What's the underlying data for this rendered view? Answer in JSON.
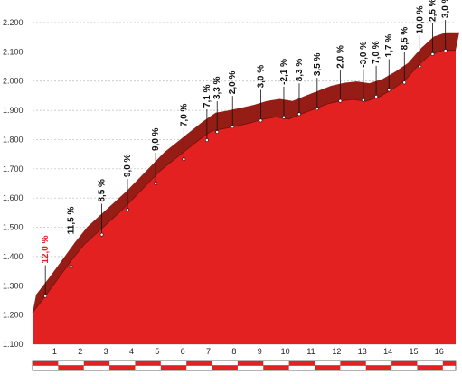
{
  "chart_data": {
    "type": "area",
    "title": "",
    "xlabel": "",
    "ylabel": "",
    "x_unit": "km",
    "xlim": [
      0,
      16.5
    ],
    "ylim": [
      1100,
      2200
    ],
    "y_ticks": [
      1100,
      1200,
      1300,
      1400,
      1500,
      1600,
      1700,
      1800,
      1900,
      2000,
      2100,
      2200
    ],
    "y_tick_labels": [
      "1.100",
      "1.200",
      "1.300",
      "1.400",
      "1.500",
      "1.600",
      "1.700",
      "1.800",
      "1.900",
      "2.000",
      "2.100",
      "2.200"
    ],
    "x_ticks": [
      1,
      2,
      3,
      4,
      5,
      6,
      7,
      8,
      9,
      10,
      11,
      12,
      13,
      14,
      15,
      16
    ],
    "x_tick_labels": [
      "1",
      "2",
      "3",
      "4",
      "5",
      "6",
      "7",
      "8",
      "9",
      "10",
      "11",
      "12",
      "13",
      "14",
      "15",
      "16"
    ],
    "grid": "horizontal",
    "colors": {
      "fill": "#e32120",
      "band": "#961d16",
      "grid": "#bbbbbb",
      "first_label": "#e32120",
      "label": "#111111",
      "strip_red": "#e32120"
    },
    "profile": {
      "x": [
        0,
        0.5,
        1,
        1.5,
        2,
        2.5,
        3,
        3.5,
        4,
        4.5,
        5,
        5.5,
        6,
        6.5,
        7,
        7.5,
        8,
        8.5,
        9,
        9.5,
        10,
        10.5,
        11,
        11.5,
        12,
        12.5,
        13,
        13.5,
        14,
        14.5,
        15,
        15.5,
        16,
        16.5
      ],
      "y": [
        1208,
        1265,
        1325,
        1385,
        1440,
        1480,
        1520,
        1560,
        1605,
        1650,
        1695,
        1730,
        1765,
        1800,
        1830,
        1838,
        1847,
        1857,
        1870,
        1877,
        1870,
        1888,
        1905,
        1922,
        1932,
        1937,
        1931,
        1945,
        1970,
        2000,
        2050,
        2090,
        2105,
        2105
      ]
    },
    "gradients": [
      {
        "km": 0.5,
        "elev": 1265,
        "label": "12,0 %"
      },
      {
        "km": 1.5,
        "elev": 1365,
        "label": "11,5 %"
      },
      {
        "km": 2.7,
        "elev": 1475,
        "label": "8,5 %"
      },
      {
        "km": 3.7,
        "elev": 1560,
        "label": "9,0 %"
      },
      {
        "km": 4.8,
        "elev": 1650,
        "label": "9,0 %"
      },
      {
        "km": 5.9,
        "elev": 1733,
        "label": "7,0 %"
      },
      {
        "km": 6.8,
        "elev": 1798,
        "label": "7,1 %"
      },
      {
        "km": 7.2,
        "elev": 1826,
        "label": "3,3 %"
      },
      {
        "km": 7.8,
        "elev": 1844,
        "label": "2,0 %"
      },
      {
        "km": 8.9,
        "elev": 1865,
        "label": "3,0 %"
      },
      {
        "km": 9.8,
        "elev": 1876,
        "label": "-2,1 %"
      },
      {
        "km": 10.4,
        "elev": 1887,
        "label": "8,3 %"
      },
      {
        "km": 11.1,
        "elev": 1906,
        "label": "3,5 %"
      },
      {
        "km": 12.0,
        "elev": 1932,
        "label": "2,0 %"
      },
      {
        "km": 12.9,
        "elev": 1935,
        "label": "-3,0 %"
      },
      {
        "km": 13.4,
        "elev": 1947,
        "label": "7,0 %"
      },
      {
        "km": 13.9,
        "elev": 1970,
        "label": "1,7 %"
      },
      {
        "km": 14.5,
        "elev": 1995,
        "label": "8,5 %"
      },
      {
        "km": 15.1,
        "elev": 2050,
        "label": "10,0 %"
      },
      {
        "km": 15.6,
        "elev": 2092,
        "label": "2,5 %"
      },
      {
        "km": 16.1,
        "elev": 2104,
        "label": "3,0 %"
      }
    ]
  }
}
